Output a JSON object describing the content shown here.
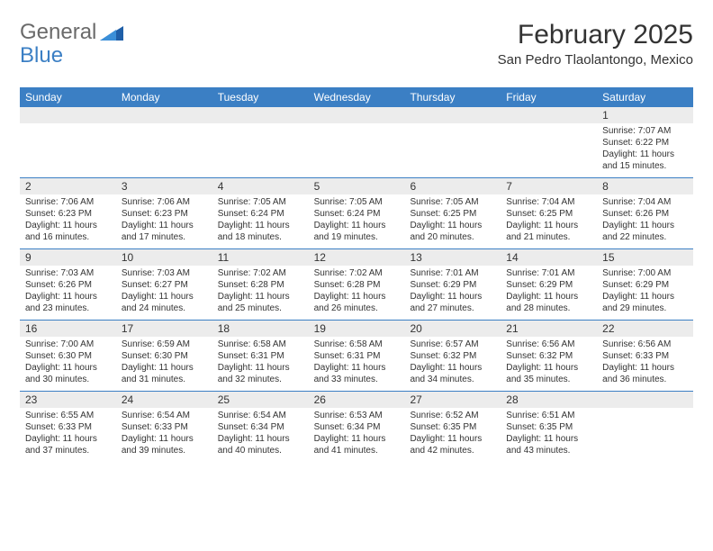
{
  "brand": {
    "general": "General",
    "blue": "Blue"
  },
  "title": "February 2025",
  "location": "San Pedro Tlaolantongo, Mexico",
  "colors": {
    "header_bar": "#3b7fc4",
    "daynum_band": "#ececec",
    "text": "#333333",
    "logo_gray": "#6a6a6a",
    "logo_blue": "#3b7fc4",
    "background": "#ffffff"
  },
  "typography": {
    "title_fontsize": 30,
    "location_fontsize": 15,
    "weekday_fontsize": 12,
    "daynum_fontsize": 12,
    "body_fontsize": 10
  },
  "weekdays": [
    "Sunday",
    "Monday",
    "Tuesday",
    "Wednesday",
    "Thursday",
    "Friday",
    "Saturday"
  ],
  "weeks": [
    [
      {
        "n": "",
        "sunrise": "",
        "sunset": "",
        "daylight": ""
      },
      {
        "n": "",
        "sunrise": "",
        "sunset": "",
        "daylight": ""
      },
      {
        "n": "",
        "sunrise": "",
        "sunset": "",
        "daylight": ""
      },
      {
        "n": "",
        "sunrise": "",
        "sunset": "",
        "daylight": ""
      },
      {
        "n": "",
        "sunrise": "",
        "sunset": "",
        "daylight": ""
      },
      {
        "n": "",
        "sunrise": "",
        "sunset": "",
        "daylight": ""
      },
      {
        "n": "1",
        "sunrise": "Sunrise: 7:07 AM",
        "sunset": "Sunset: 6:22 PM",
        "daylight": "Daylight: 11 hours and 15 minutes."
      }
    ],
    [
      {
        "n": "2",
        "sunrise": "Sunrise: 7:06 AM",
        "sunset": "Sunset: 6:23 PM",
        "daylight": "Daylight: 11 hours and 16 minutes."
      },
      {
        "n": "3",
        "sunrise": "Sunrise: 7:06 AM",
        "sunset": "Sunset: 6:23 PM",
        "daylight": "Daylight: 11 hours and 17 minutes."
      },
      {
        "n": "4",
        "sunrise": "Sunrise: 7:05 AM",
        "sunset": "Sunset: 6:24 PM",
        "daylight": "Daylight: 11 hours and 18 minutes."
      },
      {
        "n": "5",
        "sunrise": "Sunrise: 7:05 AM",
        "sunset": "Sunset: 6:24 PM",
        "daylight": "Daylight: 11 hours and 19 minutes."
      },
      {
        "n": "6",
        "sunrise": "Sunrise: 7:05 AM",
        "sunset": "Sunset: 6:25 PM",
        "daylight": "Daylight: 11 hours and 20 minutes."
      },
      {
        "n": "7",
        "sunrise": "Sunrise: 7:04 AM",
        "sunset": "Sunset: 6:25 PM",
        "daylight": "Daylight: 11 hours and 21 minutes."
      },
      {
        "n": "8",
        "sunrise": "Sunrise: 7:04 AM",
        "sunset": "Sunset: 6:26 PM",
        "daylight": "Daylight: 11 hours and 22 minutes."
      }
    ],
    [
      {
        "n": "9",
        "sunrise": "Sunrise: 7:03 AM",
        "sunset": "Sunset: 6:26 PM",
        "daylight": "Daylight: 11 hours and 23 minutes."
      },
      {
        "n": "10",
        "sunrise": "Sunrise: 7:03 AM",
        "sunset": "Sunset: 6:27 PM",
        "daylight": "Daylight: 11 hours and 24 minutes."
      },
      {
        "n": "11",
        "sunrise": "Sunrise: 7:02 AM",
        "sunset": "Sunset: 6:28 PM",
        "daylight": "Daylight: 11 hours and 25 minutes."
      },
      {
        "n": "12",
        "sunrise": "Sunrise: 7:02 AM",
        "sunset": "Sunset: 6:28 PM",
        "daylight": "Daylight: 11 hours and 26 minutes."
      },
      {
        "n": "13",
        "sunrise": "Sunrise: 7:01 AM",
        "sunset": "Sunset: 6:29 PM",
        "daylight": "Daylight: 11 hours and 27 minutes."
      },
      {
        "n": "14",
        "sunrise": "Sunrise: 7:01 AM",
        "sunset": "Sunset: 6:29 PM",
        "daylight": "Daylight: 11 hours and 28 minutes."
      },
      {
        "n": "15",
        "sunrise": "Sunrise: 7:00 AM",
        "sunset": "Sunset: 6:29 PM",
        "daylight": "Daylight: 11 hours and 29 minutes."
      }
    ],
    [
      {
        "n": "16",
        "sunrise": "Sunrise: 7:00 AM",
        "sunset": "Sunset: 6:30 PM",
        "daylight": "Daylight: 11 hours and 30 minutes."
      },
      {
        "n": "17",
        "sunrise": "Sunrise: 6:59 AM",
        "sunset": "Sunset: 6:30 PM",
        "daylight": "Daylight: 11 hours and 31 minutes."
      },
      {
        "n": "18",
        "sunrise": "Sunrise: 6:58 AM",
        "sunset": "Sunset: 6:31 PM",
        "daylight": "Daylight: 11 hours and 32 minutes."
      },
      {
        "n": "19",
        "sunrise": "Sunrise: 6:58 AM",
        "sunset": "Sunset: 6:31 PM",
        "daylight": "Daylight: 11 hours and 33 minutes."
      },
      {
        "n": "20",
        "sunrise": "Sunrise: 6:57 AM",
        "sunset": "Sunset: 6:32 PM",
        "daylight": "Daylight: 11 hours and 34 minutes."
      },
      {
        "n": "21",
        "sunrise": "Sunrise: 6:56 AM",
        "sunset": "Sunset: 6:32 PM",
        "daylight": "Daylight: 11 hours and 35 minutes."
      },
      {
        "n": "22",
        "sunrise": "Sunrise: 6:56 AM",
        "sunset": "Sunset: 6:33 PM",
        "daylight": "Daylight: 11 hours and 36 minutes."
      }
    ],
    [
      {
        "n": "23",
        "sunrise": "Sunrise: 6:55 AM",
        "sunset": "Sunset: 6:33 PM",
        "daylight": "Daylight: 11 hours and 37 minutes."
      },
      {
        "n": "24",
        "sunrise": "Sunrise: 6:54 AM",
        "sunset": "Sunset: 6:33 PM",
        "daylight": "Daylight: 11 hours and 39 minutes."
      },
      {
        "n": "25",
        "sunrise": "Sunrise: 6:54 AM",
        "sunset": "Sunset: 6:34 PM",
        "daylight": "Daylight: 11 hours and 40 minutes."
      },
      {
        "n": "26",
        "sunrise": "Sunrise: 6:53 AM",
        "sunset": "Sunset: 6:34 PM",
        "daylight": "Daylight: 11 hours and 41 minutes."
      },
      {
        "n": "27",
        "sunrise": "Sunrise: 6:52 AM",
        "sunset": "Sunset: 6:35 PM",
        "daylight": "Daylight: 11 hours and 42 minutes."
      },
      {
        "n": "28",
        "sunrise": "Sunrise: 6:51 AM",
        "sunset": "Sunset: 6:35 PM",
        "daylight": "Daylight: 11 hours and 43 minutes."
      },
      {
        "n": "",
        "sunrise": "",
        "sunset": "",
        "daylight": ""
      }
    ]
  ]
}
